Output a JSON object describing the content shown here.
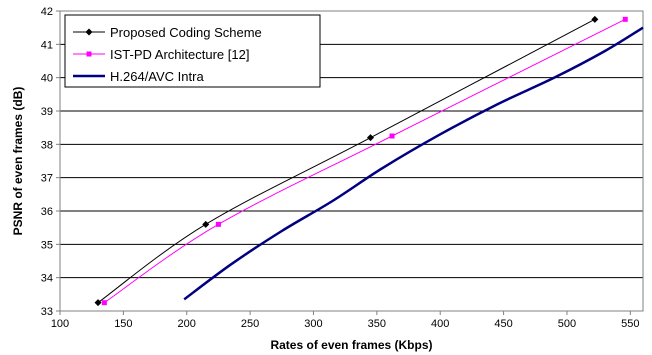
{
  "chart_data": {
    "type": "line",
    "xlabel": "Rates of even frames (Kbps)",
    "ylabel": "PSNR of even frames (dB)",
    "xlim": [
      100,
      560
    ],
    "ylim": [
      33,
      42
    ],
    "x_ticks": [
      100,
      150,
      200,
      250,
      300,
      350,
      400,
      450,
      500,
      550
    ],
    "y_ticks": [
      33,
      34,
      35,
      36,
      37,
      38,
      39,
      40,
      41,
      42
    ],
    "grid": "horizontal",
    "legend_placement": "top-left",
    "series": [
      {
        "name": "Proposed Coding Scheme",
        "color": "#000000",
        "marker": "diamond",
        "markers_shown": true,
        "x": [
          130,
          215,
          345,
          522
        ],
        "y": [
          33.25,
          35.6,
          38.2,
          41.75
        ]
      },
      {
        "name": "IST-PD Architecture [12]",
        "color": "#ff00ff",
        "marker": "square",
        "markers_shown": true,
        "x": [
          135,
          225,
          362,
          546
        ],
        "y": [
          33.25,
          35.6,
          38.25,
          41.75
        ]
      },
      {
        "name": "H.264/AVC Intra",
        "color": "#000080",
        "marker": "none",
        "markers_shown": false,
        "x": [
          198,
          235,
          275,
          315,
          355,
          400,
          445,
          490,
          530,
          560
        ],
        "y": [
          33.35,
          34.4,
          35.4,
          36.3,
          37.3,
          38.3,
          39.2,
          40.0,
          40.8,
          41.5
        ]
      }
    ]
  }
}
